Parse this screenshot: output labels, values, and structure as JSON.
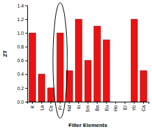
{
  "chart_data": {
    "type": "bar",
    "x_label": "Filler Elements",
    "y_label": "ZT",
    "categories": [
      "K",
      "La",
      "Ce",
      "Pr",
      "Nd",
      "In",
      "Sm",
      "Ba",
      "Eu",
      "Ho",
      "Er",
      "Yb",
      "Ca"
    ],
    "values": [
      1.0,
      0.4,
      0.2,
      1.0,
      0.45,
      1.2,
      0.6,
      1.1,
      0.9,
      0,
      0,
      1.2,
      0.45
    ],
    "color": "#ee1111",
    "ylim": [
      0,
      1.4
    ],
    "yticks": [
      {
        "value": 0,
        "label": "0.0"
      },
      0.2,
      0.4,
      0.6,
      0.8,
      {
        "value": 1,
        "label": "1.0"
      },
      1.2,
      1.4
    ],
    "grid": false
  }
}
